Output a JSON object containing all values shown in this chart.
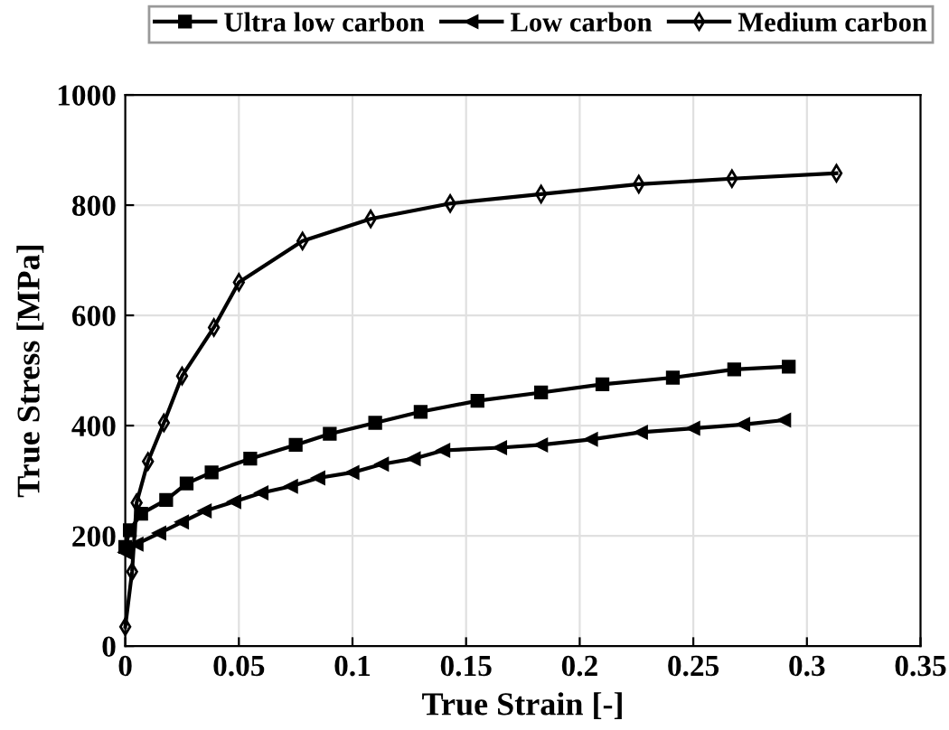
{
  "chart_data": {
    "type": "line",
    "xlabel": "True Strain [-]",
    "ylabel": "True Stress [MPa]",
    "xlim": [
      0,
      0.35
    ],
    "ylim": [
      0,
      1000
    ],
    "xticks": [
      0,
      0.05,
      0.1,
      0.15,
      0.2,
      0.25,
      0.3,
      0.35
    ],
    "yticks": [
      0,
      200,
      400,
      600,
      800,
      1000
    ],
    "grid": true,
    "legend": "top",
    "line_style": "solid",
    "series": [
      {
        "name": "Ultra low carbon",
        "color": "#000000",
        "marker": "square",
        "x": [
          0,
          0.002,
          0.007,
          0.018,
          0.027,
          0.038,
          0.055,
          0.075,
          0.09,
          0.11,
          0.13,
          0.155,
          0.183,
          0.21,
          0.241,
          0.268,
          0.292
        ],
        "values": [
          180,
          210,
          240,
          265,
          295,
          315,
          340,
          365,
          385,
          405,
          425,
          445,
          460,
          475,
          487,
          502,
          507
        ]
      },
      {
        "name": "Low carbon",
        "color": "#000000",
        "marker": "triangle_left",
        "x": [
          0,
          0.005,
          0.015,
          0.025,
          0.035,
          0.048,
          0.06,
          0.073,
          0.085,
          0.1,
          0.113,
          0.127,
          0.14,
          0.165,
          0.183,
          0.205,
          0.227,
          0.25,
          0.272,
          0.29
        ],
        "values": [
          170,
          185,
          205,
          225,
          245,
          262,
          278,
          290,
          305,
          315,
          330,
          340,
          355,
          360,
          365,
          375,
          388,
          395,
          402,
          410
        ]
      },
      {
        "name": "Medium carbon",
        "color": "#000000",
        "marker": "diamond",
        "x": [
          0,
          0.003,
          0.005,
          0.01,
          0.017,
          0.025,
          0.039,
          0.05,
          0.078,
          0.108,
          0.143,
          0.183,
          0.226,
          0.267,
          0.313
        ],
        "values": [
          35,
          135,
          260,
          335,
          405,
          490,
          578,
          660,
          735,
          775,
          803,
          820,
          838,
          848,
          858
        ]
      }
    ]
  }
}
